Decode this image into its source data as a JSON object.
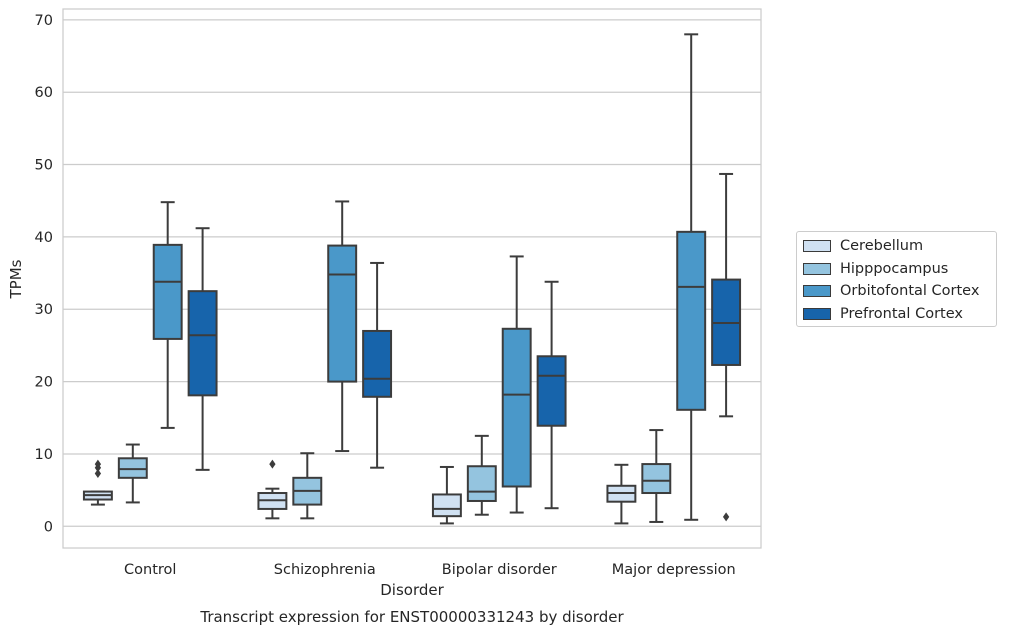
{
  "chart_data": {
    "type": "box",
    "ylabel": "TPMs",
    "xlabel": "Disorder",
    "caption": "Transcript expression for ENST00000331243 by disorder",
    "categories": [
      "Control",
      "Schizophrenia",
      "Bipolar disorder",
      "Major depression"
    ],
    "yticks": [
      0,
      10,
      20,
      30,
      40,
      50,
      60,
      70
    ],
    "ylim": [
      -3,
      71.5
    ],
    "grid": "horizontal",
    "legend_position": "right",
    "series": [
      {
        "name": "Cerebellum",
        "color": "#d0e1f2",
        "boxes": [
          {
            "whislo": 3.0,
            "q1": 3.7,
            "med": 4.3,
            "q3": 4.8,
            "whishi": 4.8,
            "fliers": [
              7.3,
              8.1,
              8.6
            ]
          },
          {
            "whislo": 1.1,
            "q1": 2.4,
            "med": 3.6,
            "q3": 4.6,
            "whishi": 5.2,
            "fliers": [
              8.6
            ]
          },
          {
            "whislo": 0.4,
            "q1": 1.4,
            "med": 2.4,
            "q3": 4.4,
            "whishi": 8.2,
            "fliers": []
          },
          {
            "whislo": 0.4,
            "q1": 3.4,
            "med": 4.6,
            "q3": 5.6,
            "whishi": 8.5,
            "fliers": []
          }
        ]
      },
      {
        "name": "Hipppocampus",
        "color": "#94c4df",
        "boxes": [
          {
            "whislo": 3.3,
            "q1": 6.7,
            "med": 7.9,
            "q3": 9.4,
            "whishi": 11.3,
            "fliers": []
          },
          {
            "whislo": 1.1,
            "q1": 3.0,
            "med": 4.9,
            "q3": 6.7,
            "whishi": 10.1,
            "fliers": []
          },
          {
            "whislo": 1.6,
            "q1": 3.5,
            "med": 4.8,
            "q3": 8.3,
            "whishi": 12.5,
            "fliers": []
          },
          {
            "whislo": 0.6,
            "q1": 4.6,
            "med": 6.3,
            "q3": 8.6,
            "whishi": 13.3,
            "fliers": []
          }
        ]
      },
      {
        "name": "Orbitofontal Cortex",
        "color": "#4a98c9",
        "boxes": [
          {
            "whislo": 13.6,
            "q1": 25.9,
            "med": 33.8,
            "q3": 38.9,
            "whishi": 44.8,
            "fliers": []
          },
          {
            "whislo": 10.4,
            "q1": 20.0,
            "med": 34.8,
            "q3": 38.8,
            "whishi": 44.9,
            "fliers": []
          },
          {
            "whislo": 1.9,
            "q1": 5.5,
            "med": 18.2,
            "q3": 27.3,
            "whishi": 37.3,
            "fliers": []
          },
          {
            "whislo": 0.9,
            "q1": 16.1,
            "med": 33.1,
            "q3": 40.7,
            "whishi": 68.0,
            "fliers": []
          }
        ]
      },
      {
        "name": "Prefrontal Cortex",
        "color": "#1764ab",
        "boxes": [
          {
            "whislo": 7.8,
            "q1": 18.1,
            "med": 26.4,
            "q3": 32.5,
            "whishi": 41.2,
            "fliers": []
          },
          {
            "whislo": 8.1,
            "q1": 17.9,
            "med": 20.4,
            "q3": 27.0,
            "whishi": 36.4,
            "fliers": []
          },
          {
            "whislo": 2.5,
            "q1": 13.9,
            "med": 20.8,
            "q3": 23.5,
            "whishi": 33.8,
            "fliers": []
          },
          {
            "whislo": 15.2,
            "q1": 22.3,
            "med": 28.1,
            "q3": 34.1,
            "whishi": 48.7,
            "fliers": [
              1.3
            ]
          }
        ]
      }
    ]
  }
}
